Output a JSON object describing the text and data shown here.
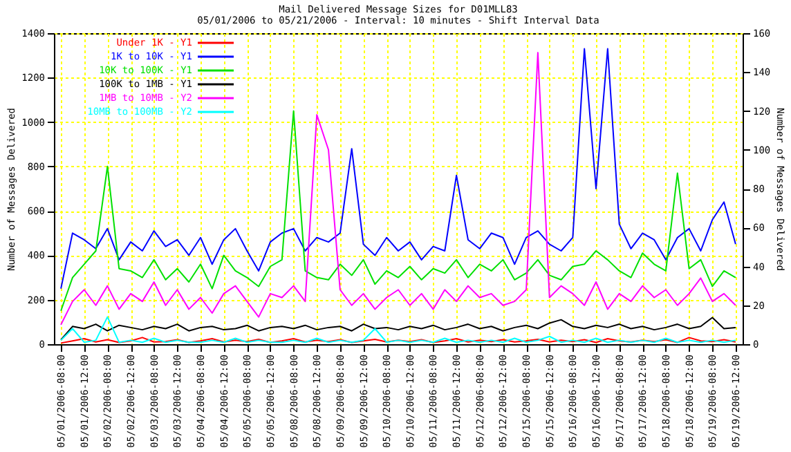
{
  "chart_data": {
    "type": "line",
    "title": "Mail Delivered Message Sizes for D01MLL83",
    "subtitle": "05/01/2006 to 05/21/2006 - Interval: 10 minutes - Shift Interval Data",
    "ylabel": "Number of Messages Delivered",
    "y2label": "Number of Messages Delivered",
    "categories": [
      "05/01/2006-08:00",
      null,
      "05/01/2006-12:00",
      null,
      "05/02/2006-08:00",
      null,
      "05/02/2006-12:00",
      null,
      "05/03/2006-08:00",
      null,
      "05/03/2006-12:00",
      null,
      "05/04/2006-08:00",
      null,
      "05/04/2006-12:00",
      null,
      "05/05/2006-08:00",
      null,
      "05/05/2006-12:00",
      null,
      "05/08/2006-08:00",
      null,
      "05/08/2006-12:00",
      null,
      "05/09/2006-08:00",
      null,
      "05/09/2006-12:00",
      null,
      "05/10/2006-08:00",
      null,
      "05/10/2006-12:00",
      null,
      "05/11/2006-08:00",
      null,
      "05/11/2006-12:00",
      null,
      "05/12/2006-08:00",
      null,
      "05/12/2006-12:00",
      null,
      "05/15/2006-08:00",
      null,
      "05/15/2006-12:00",
      null,
      "05/16/2006-08:00",
      null,
      "05/16/2006-12:00",
      null,
      "05/17/2006-08:00",
      null,
      "05/17/2006-12:00",
      null,
      "05/18/2006-08:00",
      null,
      "05/18/2006-12:00",
      null,
      "05/19/2006-08:00",
      null,
      "05/19/2006-12:00"
    ],
    "ylim": [
      0,
      1400
    ],
    "yticks": [
      0,
      200,
      400,
      600,
      800,
      1000,
      1200,
      1400
    ],
    "y2lim": [
      0,
      160
    ],
    "y2ticks": [
      0,
      20,
      40,
      60,
      80,
      100,
      120,
      140,
      160
    ],
    "grid": true,
    "legend": "top left",
    "line_style": "solid",
    "marker": "none",
    "series": [
      {
        "name": "Under 1K - Y1",
        "color": "#ff0000",
        "values": [
          5,
          15,
          25,
          10,
          20,
          8,
          15,
          30,
          10,
          12,
          20,
          8,
          15,
          25,
          10,
          18,
          12,
          22,
          8,
          15,
          25,
          10,
          18,
          12,
          20,
          8,
          15,
          22,
          10,
          18,
          12,
          20,
          8,
          15,
          25,
          10,
          18,
          12,
          20,
          10,
          15,
          22,
          10,
          18,
          12,
          20,
          8,
          25,
          15,
          10,
          18,
          12,
          20,
          8,
          30,
          15,
          12,
          20,
          10
        ]
      },
      {
        "name": "1K to 10K - Y1",
        "color": "#0000ff",
        "values": [
          250,
          500,
          470,
          430,
          520,
          380,
          460,
          420,
          510,
          440,
          470,
          400,
          480,
          360,
          470,
          520,
          420,
          330,
          460,
          500,
          520,
          420,
          480,
          460,
          500,
          880,
          450,
          400,
          480,
          420,
          460,
          380,
          440,
          420,
          760,
          470,
          430,
          500,
          480,
          360,
          480,
          510,
          450,
          420,
          480,
          1330,
          700,
          1330,
          540,
          430,
          500,
          470,
          380,
          480,
          520,
          420,
          560,
          640,
          450
        ]
      },
      {
        "name": "10K to 100K - Y1",
        "color": "#00e000",
        "values": [
          150,
          300,
          360,
          420,
          800,
          340,
          330,
          300,
          380,
          290,
          340,
          280,
          360,
          250,
          400,
          330,
          300,
          260,
          350,
          380,
          1050,
          330,
          300,
          290,
          360,
          310,
          380,
          270,
          330,
          300,
          350,
          290,
          340,
          320,
          380,
          300,
          360,
          330,
          380,
          290,
          320,
          380,
          310,
          290,
          350,
          360,
          420,
          380,
          330,
          300,
          410,
          360,
          330,
          770,
          340,
          380,
          260,
          330,
          300
        ]
      },
      {
        "name": "100K to 1MB - Y1",
        "color": "#000000",
        "values": [
          20,
          80,
          70,
          90,
          60,
          85,
          75,
          65,
          80,
          70,
          90,
          60,
          75,
          80,
          65,
          70,
          85,
          60,
          75,
          80,
          70,
          85,
          65,
          75,
          80,
          60,
          90,
          70,
          75,
          65,
          80,
          70,
          85,
          65,
          75,
          90,
          70,
          80,
          60,
          75,
          85,
          70,
          95,
          110,
          80,
          70,
          85,
          75,
          90,
          70,
          80,
          65,
          75,
          90,
          70,
          80,
          120,
          70,
          75
        ]
      },
      {
        "name": "1MB to 10MB - Y2",
        "color": "#ff00ff",
        "axis": "y2",
        "values": [
          10,
          22,
          28,
          20,
          30,
          18,
          26,
          22,
          32,
          20,
          28,
          18,
          24,
          16,
          26,
          30,
          22,
          14,
          26,
          24,
          30,
          22,
          118,
          100,
          28,
          20,
          26,
          18,
          24,
          28,
          20,
          26,
          18,
          28,
          22,
          30,
          24,
          26,
          20,
          22,
          28,
          150,
          24,
          30,
          26,
          20,
          32,
          18,
          26,
          22,
          30,
          24,
          28,
          20,
          26,
          34,
          22,
          26,
          20
        ]
      },
      {
        "name": "10MB to 100MB - Y2",
        "color": "#00ffff",
        "axis": "y2",
        "values": [
          2,
          8,
          1,
          2,
          14,
          1,
          2,
          1,
          3,
          1,
          2,
          1,
          1,
          2,
          1,
          3,
          1,
          2,
          1,
          1,
          2,
          1,
          3,
          1,
          2,
          1,
          2,
          8,
          1,
          2,
          1,
          2,
          1,
          3,
          1,
          2,
          1,
          2,
          1,
          3,
          1,
          2,
          4,
          1,
          2,
          1,
          3,
          1,
          2,
          1,
          2,
          1,
          3,
          1,
          2,
          1,
          2,
          1,
          2
        ]
      }
    ]
  }
}
